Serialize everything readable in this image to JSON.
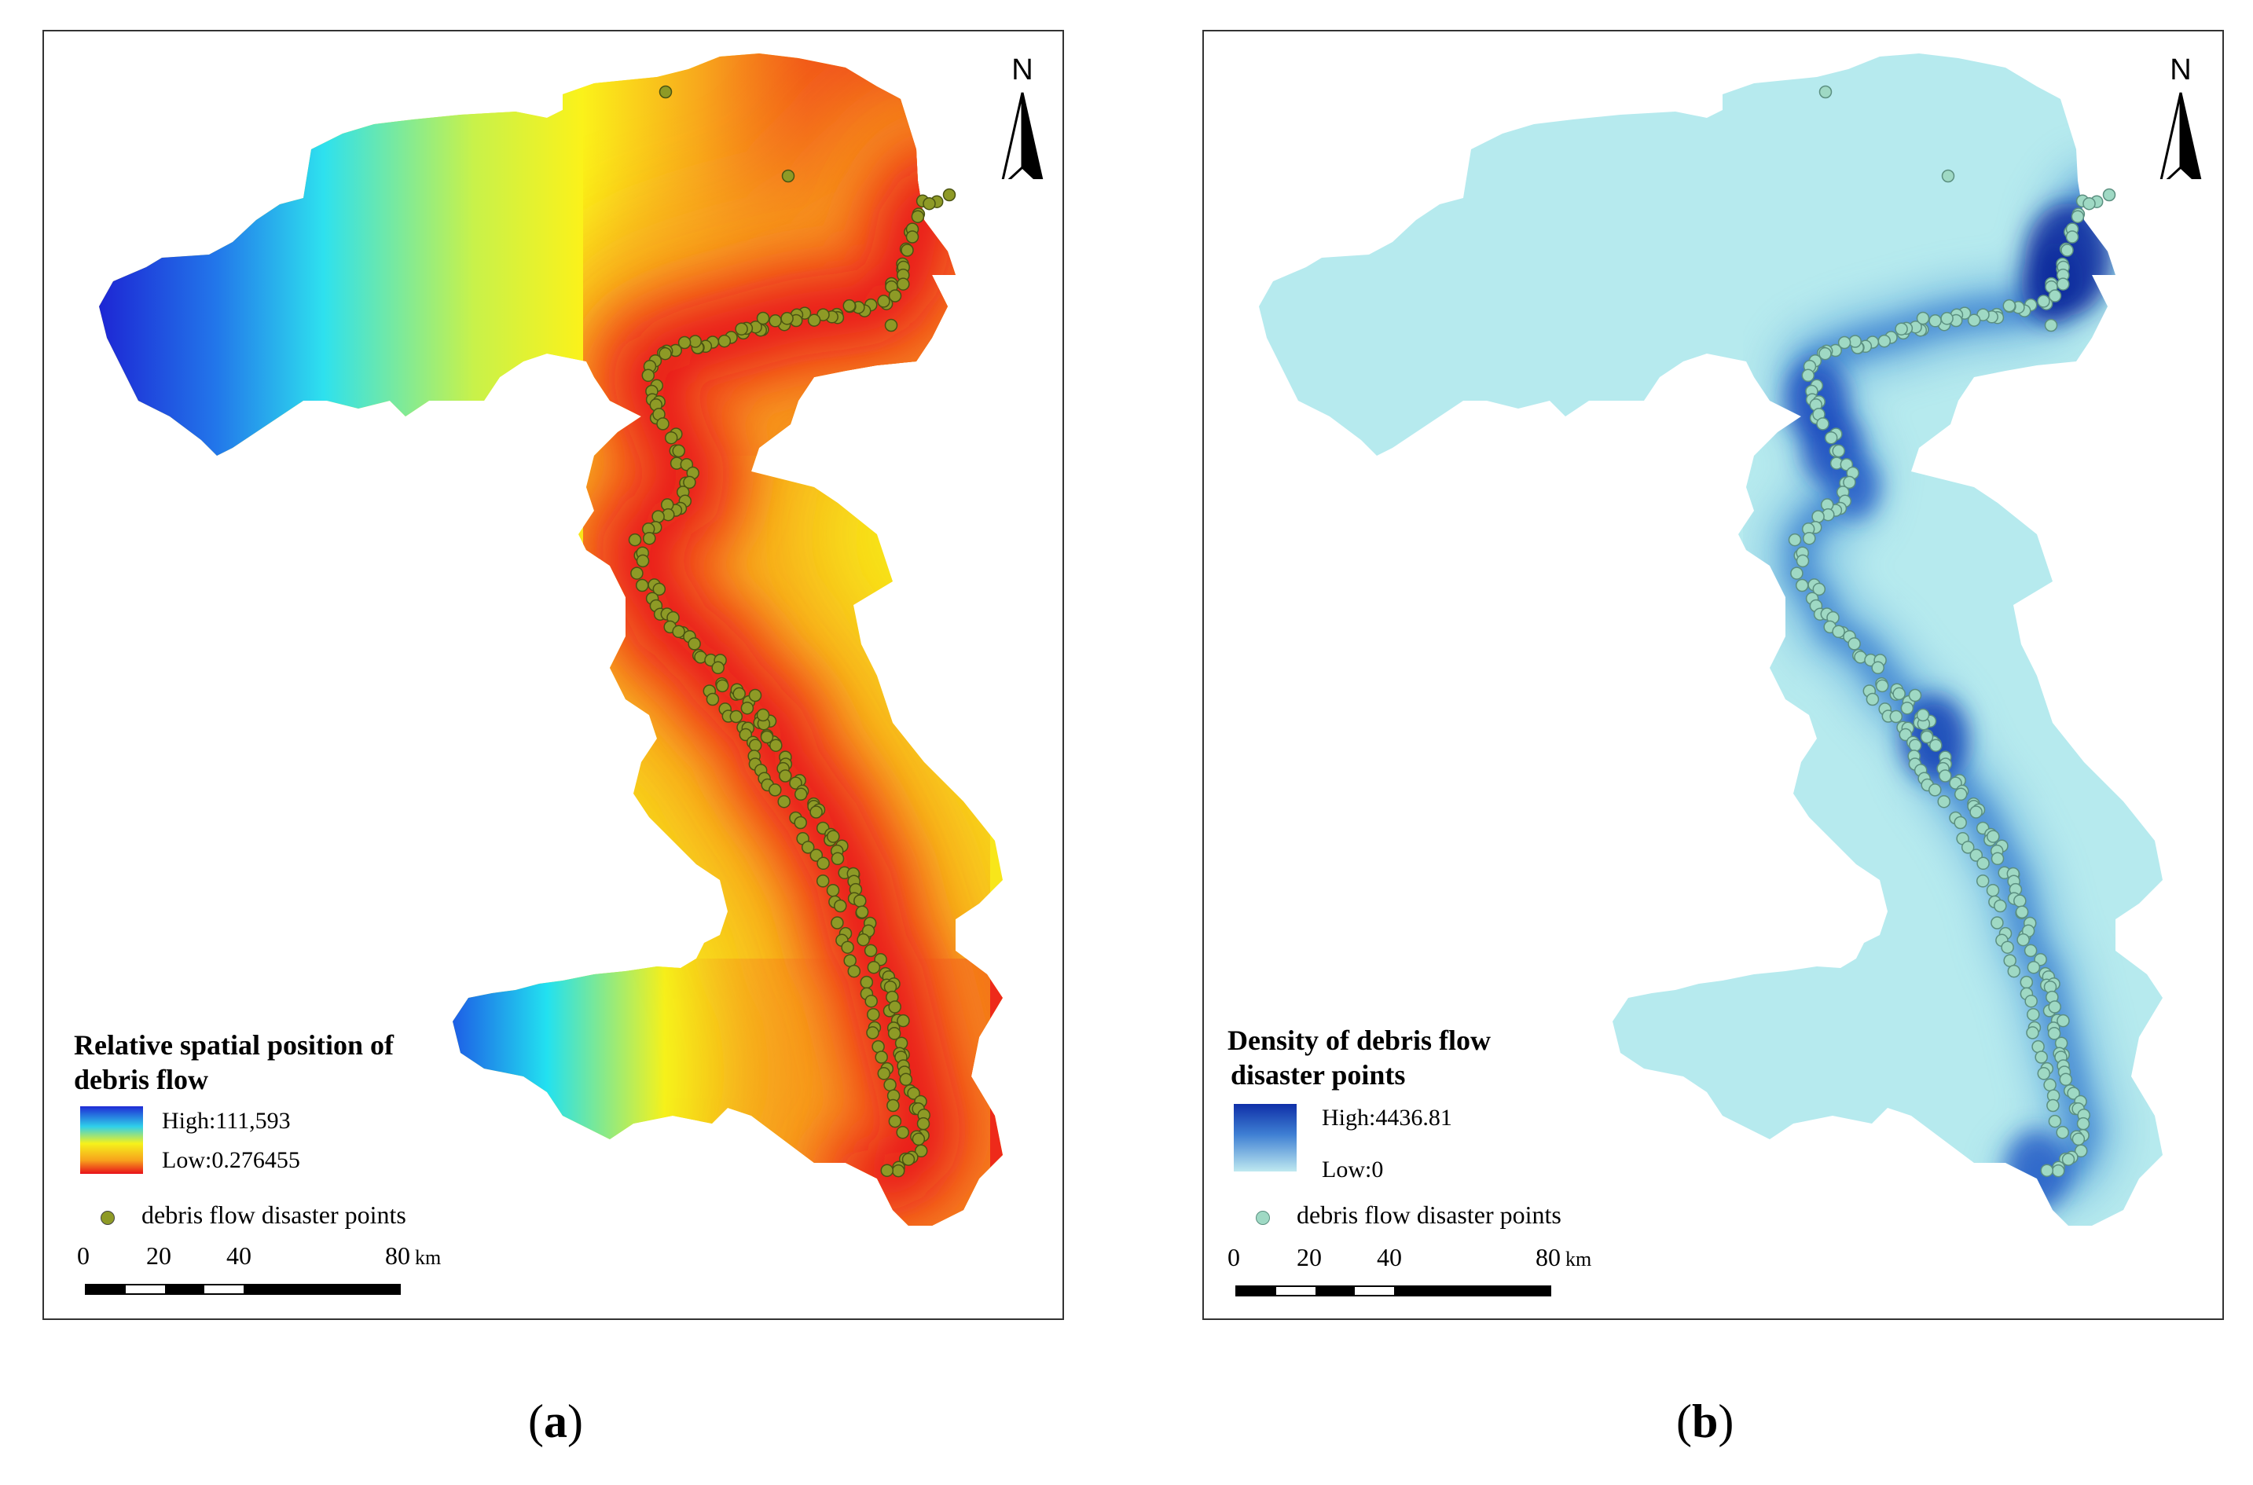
{
  "panels": [
    {
      "id": "a",
      "caption_letter": "a",
      "legend_title_line1": "Relative spatial position of",
      "legend_title_line2": "debris flow",
      "high_label": "High:111,593",
      "low_label": "Low:0.276455",
      "points_label": "debris flow disaster points",
      "north_label": "N",
      "scale_ticks": [
        "0",
        "20",
        "40",
        "80"
      ],
      "scale_unit": "km",
      "ramp_colors": [
        "#1e2bd6",
        "#2fd0ea",
        "#f6f21b",
        "#f7a21c",
        "#e8101a"
      ],
      "point_color": "#8e9a26"
    },
    {
      "id": "b",
      "caption_letter": "b",
      "legend_title_line1": "Density of debris flow",
      "legend_title_line2": "disaster points",
      "high_label": "High:4436.81",
      "low_label": "Low:0",
      "points_label": "debris flow disaster points",
      "north_label": "N",
      "scale_ticks": [
        "0",
        "20",
        "40",
        "80"
      ],
      "scale_unit": "km",
      "ramp_colors": [
        "#0f2fa8",
        "#3e7fd3",
        "#bfe9f0"
      ],
      "point_color": "#9fd9c4"
    }
  ]
}
